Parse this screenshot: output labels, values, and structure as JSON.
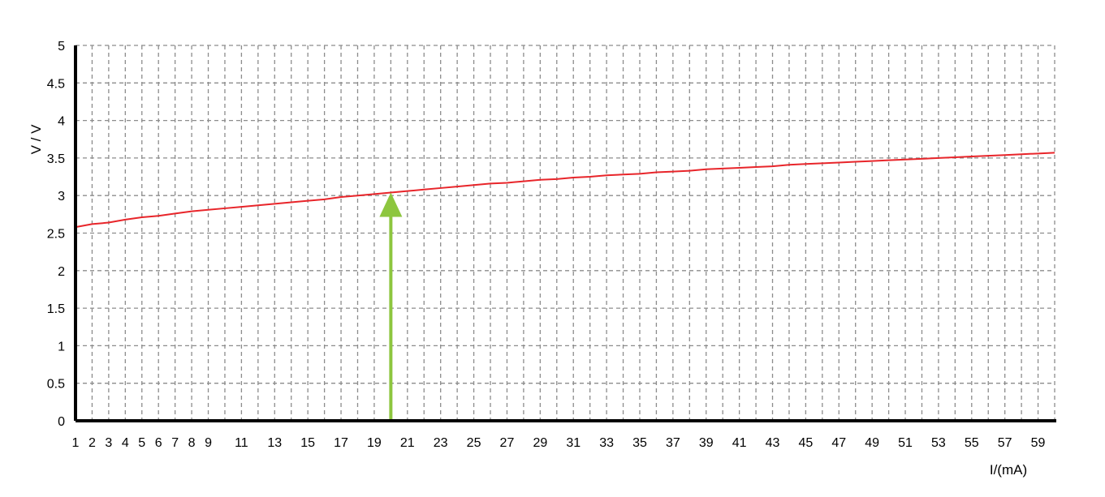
{
  "chart_data": {
    "type": "line",
    "title": "",
    "xlabel": "I/(mA)",
    "ylabel": "V / V",
    "xlim": [
      1,
      60
    ],
    "ylim": [
      0,
      5
    ],
    "grid": true,
    "x_ticks": [
      "1",
      "2",
      "3",
      "4",
      "5",
      "6",
      "7",
      "8",
      "9",
      "11",
      "13",
      "15",
      "17",
      "19",
      "21",
      "23",
      "25",
      "27",
      "29",
      "31",
      "33",
      "35",
      "37",
      "39",
      "41",
      "43",
      "45",
      "47",
      "49",
      "51",
      "53",
      "55",
      "57",
      "59"
    ],
    "y_ticks": [
      "0",
      "0.5",
      "1",
      "1.5",
      "2",
      "2.5",
      "3",
      "3.5",
      "4",
      "4.5",
      "5"
    ],
    "series": [
      {
        "color": "#e8252a",
        "x": [
          1,
          2,
          3,
          4,
          5,
          6,
          7,
          8,
          9,
          10,
          11,
          12,
          13,
          14,
          15,
          16,
          17,
          18,
          19,
          20,
          21,
          22,
          23,
          24,
          25,
          26,
          27,
          28,
          29,
          30,
          31,
          32,
          33,
          34,
          35,
          36,
          37,
          38,
          39,
          40,
          41,
          42,
          43,
          44,
          45,
          46,
          47,
          48,
          49,
          50,
          51,
          52,
          53,
          54,
          55,
          56,
          57,
          58,
          59,
          60
        ],
        "y": [
          2.58,
          2.62,
          2.64,
          2.68,
          2.71,
          2.73,
          2.76,
          2.79,
          2.81,
          2.83,
          2.85,
          2.87,
          2.89,
          2.91,
          2.93,
          2.95,
          2.98,
          3.0,
          3.02,
          3.04,
          3.06,
          3.08,
          3.1,
          3.12,
          3.14,
          3.16,
          3.17,
          3.19,
          3.21,
          3.22,
          3.24,
          3.25,
          3.27,
          3.28,
          3.29,
          3.31,
          3.32,
          3.33,
          3.35,
          3.36,
          3.37,
          3.38,
          3.39,
          3.41,
          3.42,
          3.43,
          3.44,
          3.45,
          3.46,
          3.47,
          3.48,
          3.49,
          3.5,
          3.51,
          3.52,
          3.53,
          3.54,
          3.55,
          3.56,
          3.57
        ]
      }
    ],
    "annotation": {
      "type": "arrow",
      "color": "#8dc63f",
      "x": 20,
      "y_from": 0,
      "y_to": 3.04
    }
  }
}
